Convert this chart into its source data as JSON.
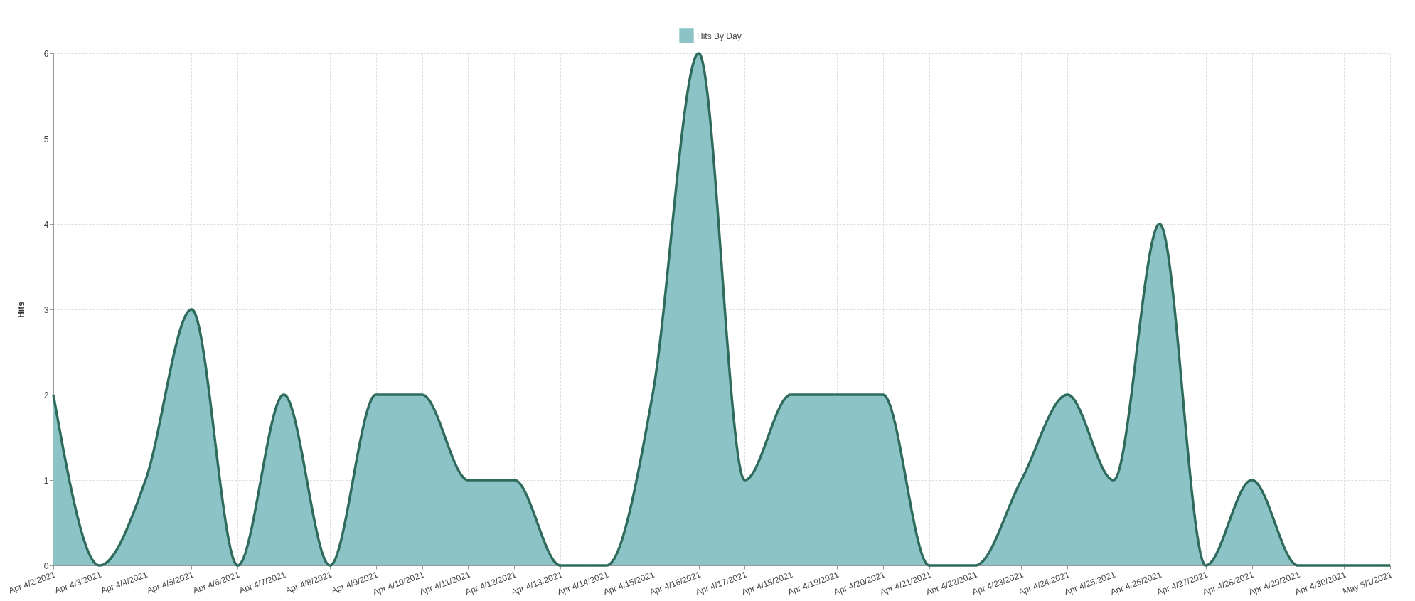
{
  "chart_data": {
    "type": "area",
    "ylabel": "Hits",
    "categories": [
      "Apr 4/2/2021",
      "Apr 4/3/2021",
      "Apr 4/4/2021",
      "Apr 4/5/2021",
      "Apr 4/6/2021",
      "Apr 4/7/2021",
      "Apr 4/8/2021",
      "Apr 4/9/2021",
      "Apr 4/10/2021",
      "Apr 4/11/2021",
      "Apr 4/12/2021",
      "Apr 4/13/2021",
      "Apr 4/14/2021",
      "Apr 4/15/2021",
      "Apr 4/16/2021",
      "Apr 4/17/2021",
      "Apr 4/18/2021",
      "Apr 4/19/2021",
      "Apr 4/20/2021",
      "Apr 4/21/2021",
      "Apr 4/22/2021",
      "Apr 4/23/2021",
      "Apr 4/24/2021",
      "Apr 4/25/2021",
      "Apr 4/26/2021",
      "Apr 4/27/2021",
      "Apr 4/28/2021",
      "Apr 4/29/2021",
      "Apr 4/30/2021",
      "May 5/1/2021"
    ],
    "series": [
      {
        "name": "Hits By Day",
        "color": "#8cc3c6",
        "values": [
          2,
          0,
          1,
          3,
          0,
          2,
          0,
          2,
          2,
          1,
          1,
          0,
          0,
          2,
          6,
          1,
          2,
          2,
          2,
          0,
          0,
          1,
          2,
          1,
          4,
          0,
          1,
          0,
          0,
          0
        ]
      }
    ],
    "ylim": [
      0,
      6
    ],
    "yticks": [
      0,
      1,
      2,
      3,
      4,
      5,
      6
    ],
    "grid": true,
    "legend": "top",
    "marker": "none",
    "line_style": "solid"
  }
}
